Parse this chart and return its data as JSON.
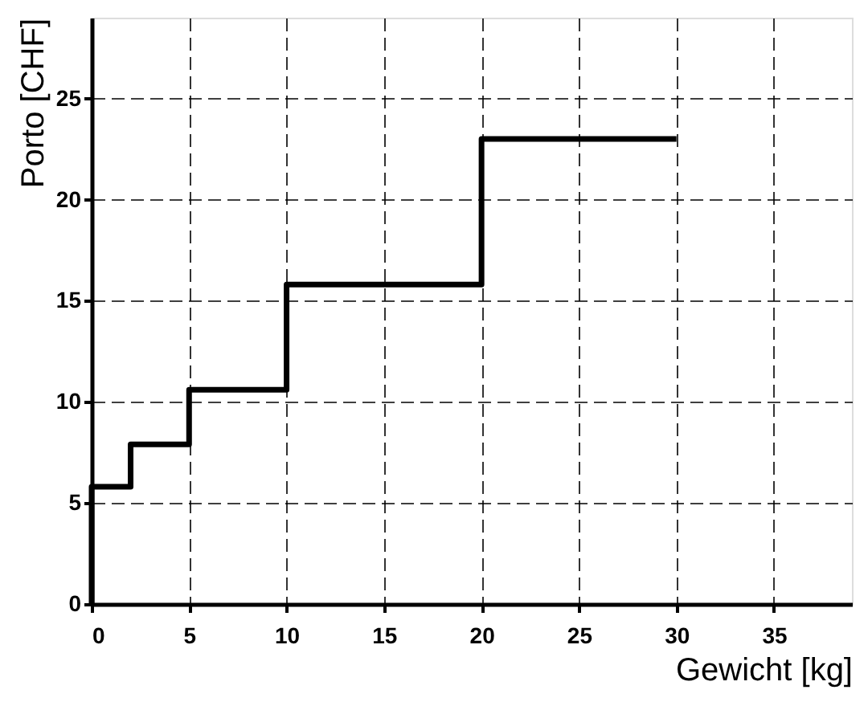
{
  "chart_data": {
    "type": "step",
    "xlabel": "Gewicht [kg]",
    "ylabel": "Porto  [CHF]",
    "x": [
      0,
      0,
      2,
      5,
      10,
      20,
      30
    ],
    "series": [
      {
        "color": "#000000",
        "values": [
          0,
          5.8,
          7.9,
          10.6,
          15.8,
          23,
          23
        ]
      }
    ],
    "xlim": [
      0,
      39
    ],
    "ylim": [
      0,
      29
    ],
    "xticks": [
      0,
      5,
      10,
      15,
      20,
      25,
      30,
      35
    ],
    "yticks": [
      0,
      5,
      10,
      15,
      20,
      25
    ],
    "grid": true,
    "marker": "none",
    "line_style": "solid"
  }
}
